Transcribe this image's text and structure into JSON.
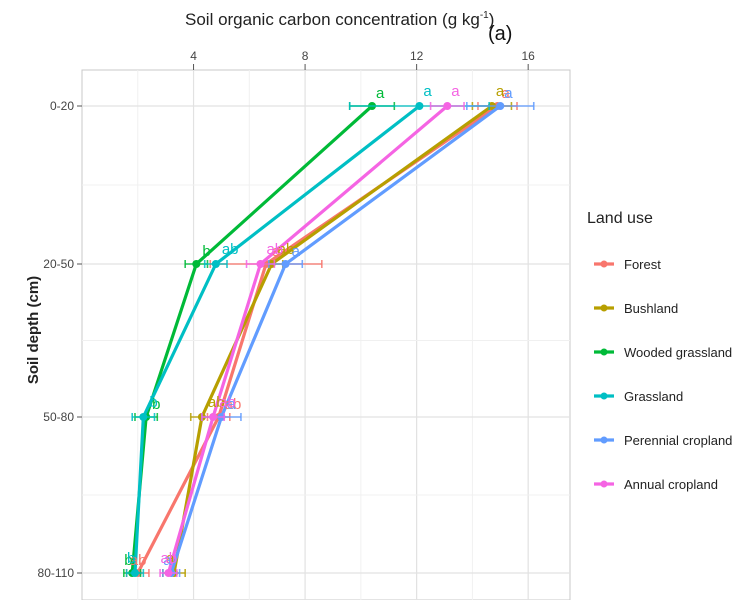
{
  "chart_data": {
    "type": "line",
    "panel_label": "(a)",
    "x_title_main": "Soil organic carbon concentration (g kg",
    "x_title_sup": "-1",
    "x_title_end": ")",
    "ylabel": "Soil depth (cm)",
    "x_axis_position": "top",
    "xlim": [
      0,
      17.5
    ],
    "x_ticks": [
      4,
      8,
      12,
      16
    ],
    "x_tick_labels": [
      "4",
      "8",
      "12",
      "16"
    ],
    "categories": [
      "0-20",
      "20-50",
      "50-80",
      "80-110"
    ],
    "grid": true,
    "legend_position": "right",
    "legend_title": "Land use",
    "series": [
      {
        "name": "Forest",
        "color": "#F8766D",
        "values": [
          14.9,
          6.6,
          4.9,
          2.0
        ],
        "err": [
          0.7,
          2.0,
          0.4,
          0.4
        ],
        "letters": [
          "a",
          "a",
          "ab",
          "ab"
        ]
      },
      {
        "name": "Bushland",
        "color": "#B79F00",
        "values": [
          14.7,
          6.8,
          4.3,
          3.3
        ],
        "err": [
          0.7,
          0.4,
          0.4,
          0.4
        ],
        "letters": [
          "a",
          "ab",
          "ab",
          "a"
        ]
      },
      {
        "name": "Wooded grassland",
        "color": "#00BA38",
        "values": [
          10.4,
          4.1,
          2.3,
          1.8
        ],
        "err": [
          0.8,
          0.4,
          0.4,
          0.3
        ],
        "letters": [
          "a",
          "b",
          "b",
          "b"
        ]
      },
      {
        "name": "Grassland",
        "color": "#00BFC4",
        "values": [
          12.1,
          4.8,
          2.2,
          1.9
        ],
        "err": [
          2.5,
          0.4,
          0.4,
          0.3
        ],
        "letters": [
          "a",
          "ab",
          "b",
          "b"
        ]
      },
      {
        "name": "Perennial cropland",
        "color": "#619CFF",
        "values": [
          15.0,
          7.3,
          5.0,
          3.2
        ],
        "err": [
          1.2,
          0.6,
          0.7,
          0.3
        ],
        "letters": [
          "a",
          "a",
          "a",
          "a"
        ]
      },
      {
        "name": "Annual cropland",
        "color": "#F564E3",
        "values": [
          13.1,
          6.4,
          4.7,
          3.1
        ],
        "err": [
          0.6,
          0.5,
          0.4,
          0.3
        ],
        "letters": [
          "a",
          "ab",
          "ab",
          "ab"
        ]
      }
    ]
  }
}
